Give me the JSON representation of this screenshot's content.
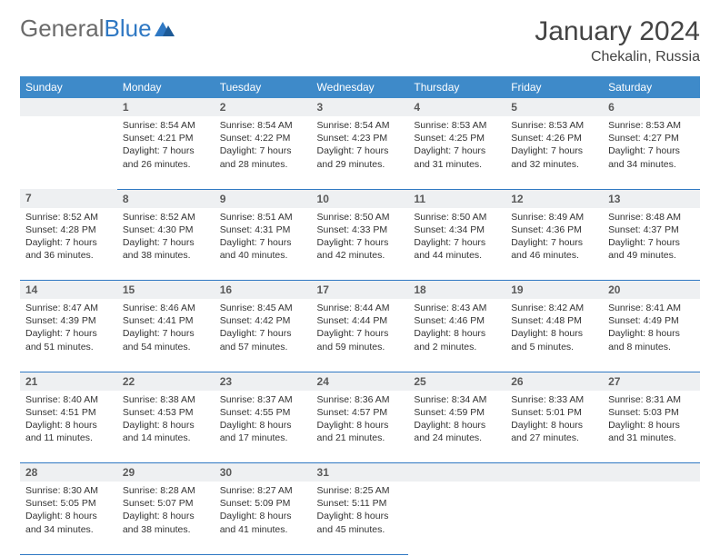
{
  "logo": {
    "part1": "General",
    "part2": "Blue"
  },
  "title": "January 2024",
  "location": "Chekalin, Russia",
  "header_bg": "#3e8ac9",
  "accent_line": "#2f78c3",
  "daynum_bg": "#eef0f2",
  "weekdays": [
    "Sunday",
    "Monday",
    "Tuesday",
    "Wednesday",
    "Thursday",
    "Friday",
    "Saturday"
  ],
  "weeks": [
    [
      null,
      {
        "n": "1",
        "sr": "8:54 AM",
        "ss": "4:21 PM",
        "dl": "7 hours and 26 minutes."
      },
      {
        "n": "2",
        "sr": "8:54 AM",
        "ss": "4:22 PM",
        "dl": "7 hours and 28 minutes."
      },
      {
        "n": "3",
        "sr": "8:54 AM",
        "ss": "4:23 PM",
        "dl": "7 hours and 29 minutes."
      },
      {
        "n": "4",
        "sr": "8:53 AM",
        "ss": "4:25 PM",
        "dl": "7 hours and 31 minutes."
      },
      {
        "n": "5",
        "sr": "8:53 AM",
        "ss": "4:26 PM",
        "dl": "7 hours and 32 minutes."
      },
      {
        "n": "6",
        "sr": "8:53 AM",
        "ss": "4:27 PM",
        "dl": "7 hours and 34 minutes."
      }
    ],
    [
      {
        "n": "7",
        "sr": "8:52 AM",
        "ss": "4:28 PM",
        "dl": "7 hours and 36 minutes."
      },
      {
        "n": "8",
        "sr": "8:52 AM",
        "ss": "4:30 PM",
        "dl": "7 hours and 38 minutes."
      },
      {
        "n": "9",
        "sr": "8:51 AM",
        "ss": "4:31 PM",
        "dl": "7 hours and 40 minutes."
      },
      {
        "n": "10",
        "sr": "8:50 AM",
        "ss": "4:33 PM",
        "dl": "7 hours and 42 minutes."
      },
      {
        "n": "11",
        "sr": "8:50 AM",
        "ss": "4:34 PM",
        "dl": "7 hours and 44 minutes."
      },
      {
        "n": "12",
        "sr": "8:49 AM",
        "ss": "4:36 PM",
        "dl": "7 hours and 46 minutes."
      },
      {
        "n": "13",
        "sr": "8:48 AM",
        "ss": "4:37 PM",
        "dl": "7 hours and 49 minutes."
      }
    ],
    [
      {
        "n": "14",
        "sr": "8:47 AM",
        "ss": "4:39 PM",
        "dl": "7 hours and 51 minutes."
      },
      {
        "n": "15",
        "sr": "8:46 AM",
        "ss": "4:41 PM",
        "dl": "7 hours and 54 minutes."
      },
      {
        "n": "16",
        "sr": "8:45 AM",
        "ss": "4:42 PM",
        "dl": "7 hours and 57 minutes."
      },
      {
        "n": "17",
        "sr": "8:44 AM",
        "ss": "4:44 PM",
        "dl": "7 hours and 59 minutes."
      },
      {
        "n": "18",
        "sr": "8:43 AM",
        "ss": "4:46 PM",
        "dl": "8 hours and 2 minutes."
      },
      {
        "n": "19",
        "sr": "8:42 AM",
        "ss": "4:48 PM",
        "dl": "8 hours and 5 minutes."
      },
      {
        "n": "20",
        "sr": "8:41 AM",
        "ss": "4:49 PM",
        "dl": "8 hours and 8 minutes."
      }
    ],
    [
      {
        "n": "21",
        "sr": "8:40 AM",
        "ss": "4:51 PM",
        "dl": "8 hours and 11 minutes."
      },
      {
        "n": "22",
        "sr": "8:38 AM",
        "ss": "4:53 PM",
        "dl": "8 hours and 14 minutes."
      },
      {
        "n": "23",
        "sr": "8:37 AM",
        "ss": "4:55 PM",
        "dl": "8 hours and 17 minutes."
      },
      {
        "n": "24",
        "sr": "8:36 AM",
        "ss": "4:57 PM",
        "dl": "8 hours and 21 minutes."
      },
      {
        "n": "25",
        "sr": "8:34 AM",
        "ss": "4:59 PM",
        "dl": "8 hours and 24 minutes."
      },
      {
        "n": "26",
        "sr": "8:33 AM",
        "ss": "5:01 PM",
        "dl": "8 hours and 27 minutes."
      },
      {
        "n": "27",
        "sr": "8:31 AM",
        "ss": "5:03 PM",
        "dl": "8 hours and 31 minutes."
      }
    ],
    [
      {
        "n": "28",
        "sr": "8:30 AM",
        "ss": "5:05 PM",
        "dl": "8 hours and 34 minutes."
      },
      {
        "n": "29",
        "sr": "8:28 AM",
        "ss": "5:07 PM",
        "dl": "8 hours and 38 minutes."
      },
      {
        "n": "30",
        "sr": "8:27 AM",
        "ss": "5:09 PM",
        "dl": "8 hours and 41 minutes."
      },
      {
        "n": "31",
        "sr": "8:25 AM",
        "ss": "5:11 PM",
        "dl": "8 hours and 45 minutes."
      },
      null,
      null,
      null
    ]
  ],
  "labels": {
    "sunrise": "Sunrise: ",
    "sunset": "Sunset: ",
    "daylight": "Daylight: "
  }
}
